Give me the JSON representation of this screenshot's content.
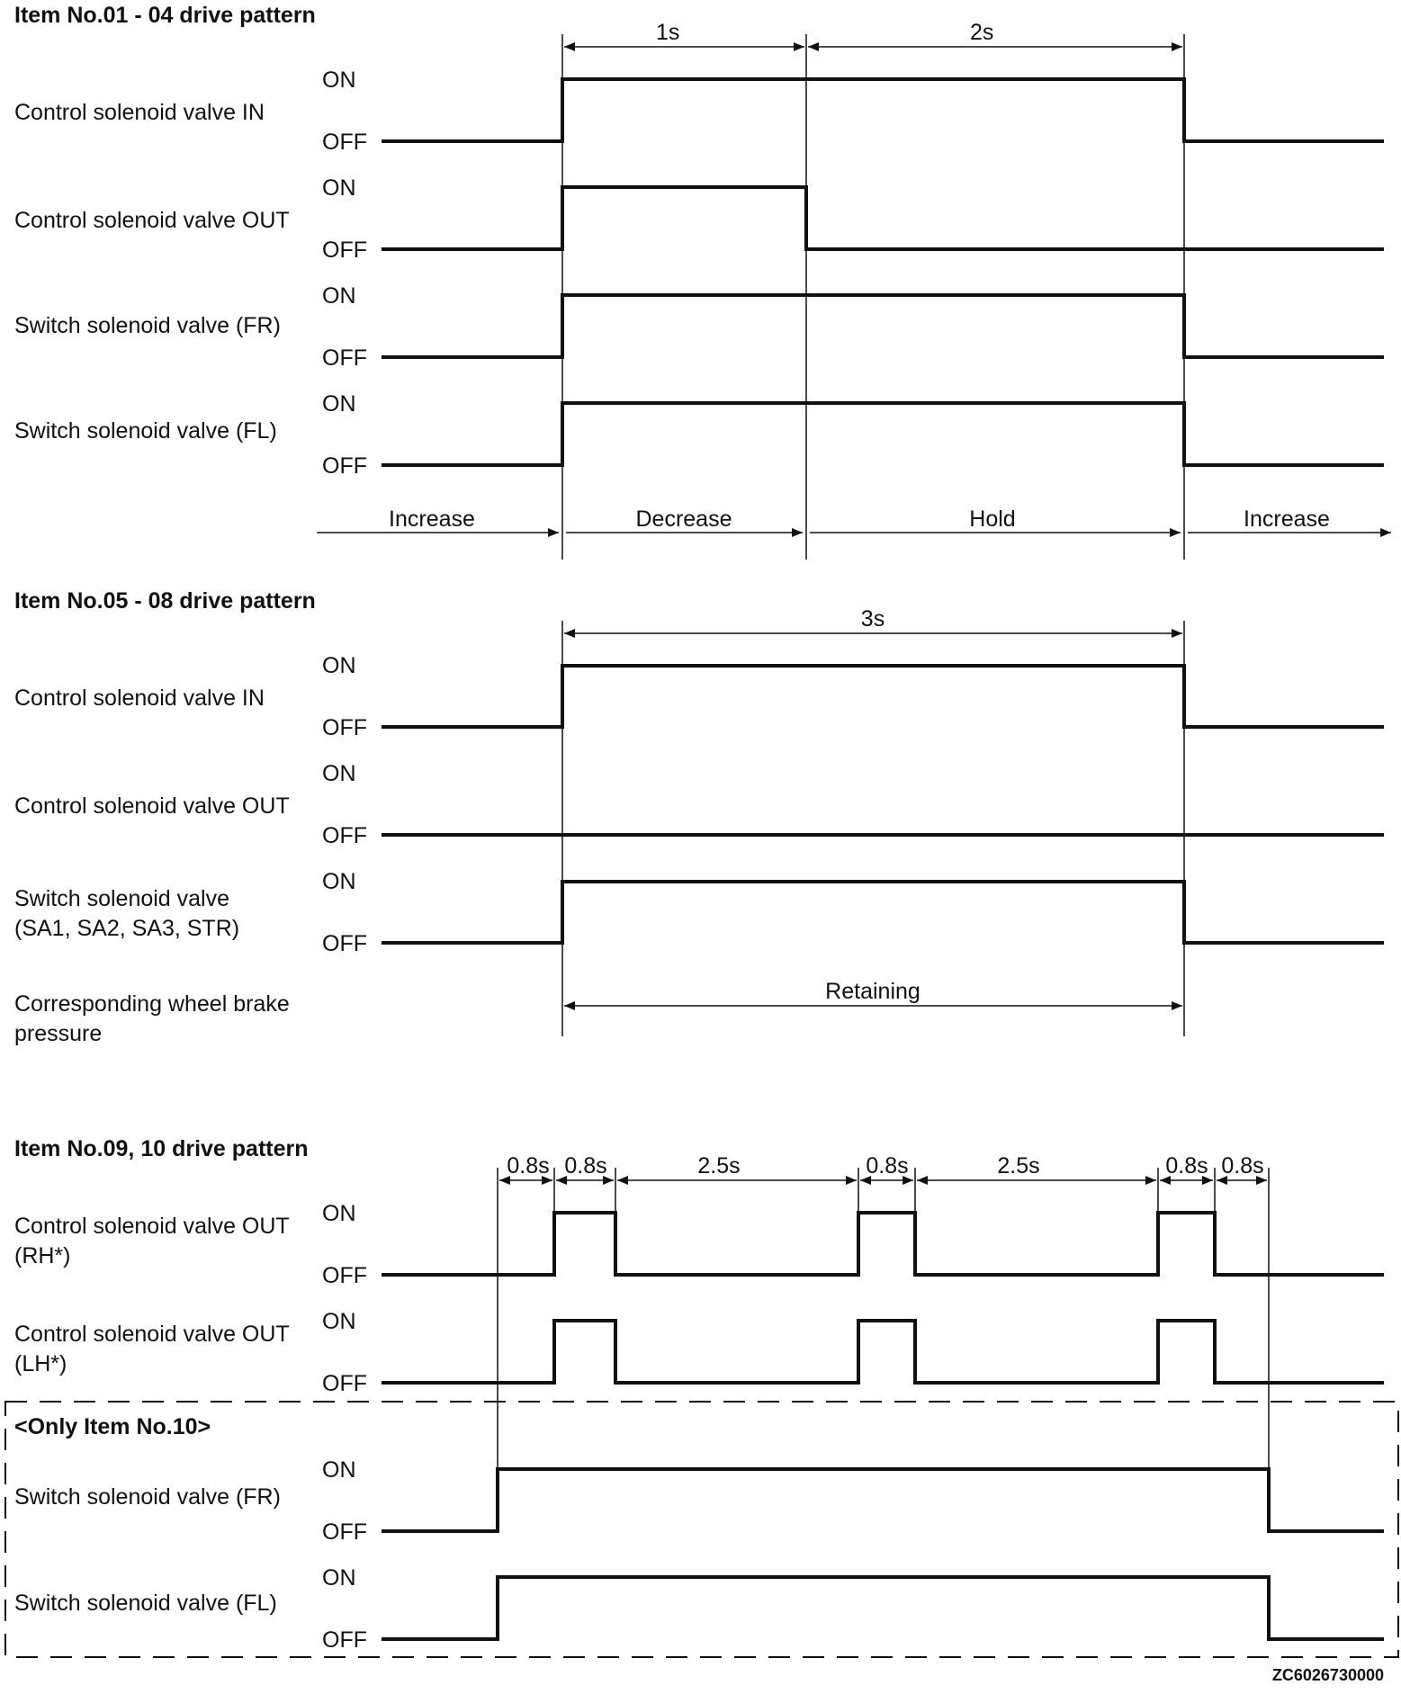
{
  "section1": {
    "title": "Item No.01 - 04 drive pattern",
    "durations": [
      "1s",
      "2s"
    ],
    "signals": [
      {
        "label_lines": [
          "Control solenoid valve IN"
        ],
        "on_label": "ON",
        "off_label": "OFF",
        "level": "ON from t1 to t3"
      },
      {
        "label_lines": [
          "Control solenoid valve OUT"
        ],
        "on_label": "ON",
        "off_label": "OFF",
        "level": "ON from t1 to t2"
      },
      {
        "label_lines": [
          "Switch solenoid valve (FR)"
        ],
        "on_label": "ON",
        "off_label": "OFF",
        "level": "ON from t1 to t3"
      },
      {
        "label_lines": [
          "Switch solenoid valve (FL)"
        ],
        "on_label": "ON",
        "off_label": "OFF",
        "level": "ON from t1 to t3"
      }
    ],
    "phases": [
      "Increase",
      "Decrease",
      "Hold",
      "Increase"
    ]
  },
  "section2": {
    "title": "Item No.05 - 08 drive pattern",
    "duration": "3s",
    "signals": [
      {
        "label_lines": [
          "Control solenoid valve IN"
        ],
        "on_label": "ON",
        "off_label": "OFF",
        "level": "ON during 3s"
      },
      {
        "label_lines": [
          "Control solenoid valve OUT"
        ],
        "on_label": "ON",
        "off_label": "OFF",
        "level": "OFF"
      },
      {
        "label_lines": [
          "Switch solenoid valve",
          "(SA1, SA2, SA3, STR)"
        ],
        "on_label": "ON",
        "off_label": "OFF",
        "level": "ON during 3s"
      }
    ],
    "pressure_label_lines": [
      "Corresponding wheel brake",
      "pressure"
    ],
    "pressure_state": "Retaining"
  },
  "section3": {
    "title": "Item No.09, 10 drive pattern",
    "durations": [
      "0.8s",
      "0.8s",
      "2.5s",
      "0.8s",
      "2.5s",
      "0.8s",
      "0.8s"
    ],
    "signals": [
      {
        "label_lines": [
          "Control solenoid valve OUT",
          "(RH*)"
        ],
        "on_label": "ON",
        "off_label": "OFF",
        "level": "three 0.8s pulses"
      },
      {
        "label_lines": [
          "Control solenoid valve OUT",
          "(LH*)"
        ],
        "on_label": "ON",
        "off_label": "OFF",
        "level": "three 0.8s pulses"
      }
    ],
    "dashed_box_title": "<Only Item No.10>",
    "boxed_signals": [
      {
        "label_lines": [
          "Switch solenoid valve (FR)"
        ],
        "on_label": "ON",
        "off_label": "OFF",
        "level": "ON for whole pattern"
      },
      {
        "label_lines": [
          "Switch solenoid valve (FL)"
        ],
        "on_label": "ON",
        "off_label": "OFF",
        "level": "ON for whole pattern"
      }
    ]
  },
  "figure_code": "ZC6026730000"
}
